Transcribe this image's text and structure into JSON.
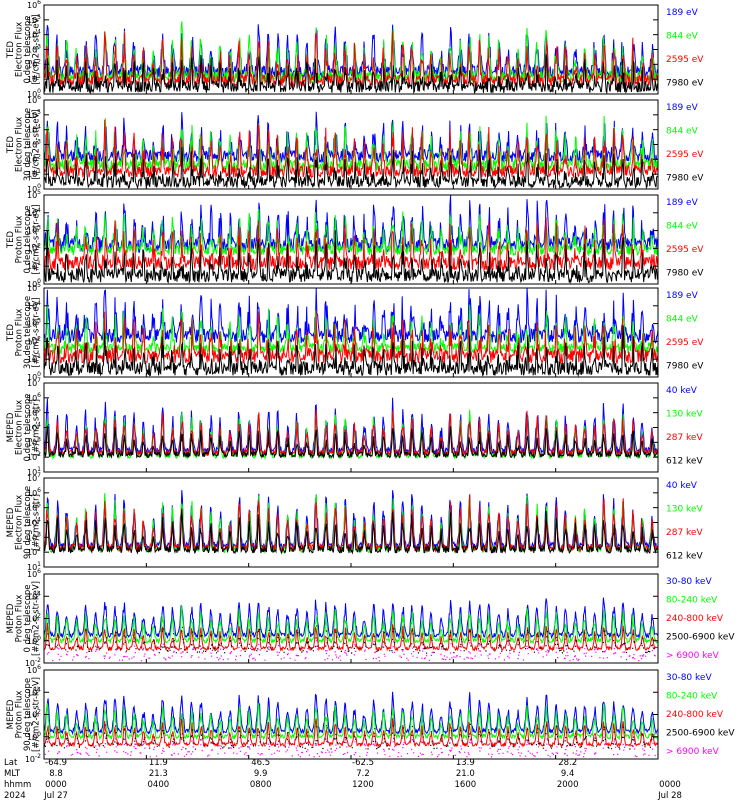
{
  "colors": {
    "black": "#000000",
    "red": "#ff0000",
    "green": "#00ff00",
    "blue": "#0000ff",
    "magenta": "#ff00ff",
    "background": "#ffffff"
  },
  "chart_data": [
    {
      "type": "line",
      "ylabel": [
        "TED",
        "Electron Flux",
        "0 deg telescope",
        "[#/cm2-s-str-eV]"
      ],
      "y_scale": "log",
      "ylim": [
        1,
        1000000
      ],
      "y_ticks": [
        {
          "base": "10",
          "exp": "0"
        },
        {
          "base": "10",
          "exp": "1"
        },
        {
          "base": "10",
          "exp": "2"
        },
        {
          "base": "10",
          "exp": "3"
        },
        {
          "base": "10",
          "exp": "4"
        },
        {
          "base": "10",
          "exp": "5"
        },
        {
          "base": "10",
          "exp": "6"
        }
      ],
      "series": [
        {
          "name": "7980 eV",
          "color": "#000000",
          "floor": 3,
          "peak": 60,
          "noise": 1.0,
          "dots": false
        },
        {
          "name": "2595 eV",
          "color": "#ff0000",
          "floor": 8,
          "peak": 2000,
          "noise": 1.0,
          "dots": false
        },
        {
          "name": "844 eV",
          "color": "#00ff00",
          "floor": 15,
          "peak": 4000,
          "noise": 1.0,
          "dots": false
        },
        {
          "name": "189 eV",
          "color": "#0000ff",
          "floor": 30,
          "peak": 8000,
          "noise": 1.0,
          "dots": false
        }
      ]
    },
    {
      "type": "line",
      "ylabel": [
        "TED",
        "Electron Flux",
        "30 deg telescope",
        "[#/cm2-s-str-eV]"
      ],
      "y_scale": "log",
      "ylim": [
        1,
        1000000
      ],
      "y_ticks": [
        {
          "base": "10",
          "exp": "0"
        },
        {
          "base": "10",
          "exp": "1"
        },
        {
          "base": "10",
          "exp": "2"
        },
        {
          "base": "10",
          "exp": "3"
        },
        {
          "base": "10",
          "exp": "4"
        },
        {
          "base": "10",
          "exp": "5"
        },
        {
          "base": "10",
          "exp": "6"
        }
      ],
      "series": [
        {
          "name": "7980 eV",
          "color": "#000000",
          "floor": 3,
          "peak": 80,
          "noise": 1.0,
          "dots": false
        },
        {
          "name": "2595 eV",
          "color": "#ff0000",
          "floor": 15,
          "peak": 3000,
          "noise": 1.0,
          "dots": false
        },
        {
          "name": "844 eV",
          "color": "#00ff00",
          "floor": 40,
          "peak": 5000,
          "noise": 1.0,
          "dots": false
        },
        {
          "name": "189 eV",
          "color": "#0000ff",
          "floor": 150,
          "peak": 8000,
          "noise": 1.0,
          "dots": false
        }
      ]
    },
    {
      "type": "line",
      "ylabel": [
        "TED",
        "Proton Flux",
        "0 deg telescope",
        "[#/cm2-s-str-eV]"
      ],
      "y_scale": "log",
      "ylim": [
        1,
        100000
      ],
      "y_ticks": [
        {
          "base": "10",
          "exp": "0"
        },
        {
          "base": "10",
          "exp": "1"
        },
        {
          "base": "10",
          "exp": "2"
        },
        {
          "base": "10",
          "exp": "3"
        },
        {
          "base": "10",
          "exp": "4"
        },
        {
          "base": "10",
          "exp": "5"
        }
      ],
      "series": [
        {
          "name": "7980 eV",
          "color": "#000000",
          "floor": 3,
          "peak": 60,
          "noise": 1.0,
          "dots": false
        },
        {
          "name": "2595 eV",
          "color": "#ff0000",
          "floor": 15,
          "peak": 400,
          "noise": 1.0,
          "dots": false
        },
        {
          "name": "844 eV",
          "color": "#00ff00",
          "floor": 80,
          "peak": 3000,
          "noise": 0.7,
          "dots": false
        },
        {
          "name": "189 eV",
          "color": "#0000ff",
          "floor": 150,
          "peak": 10000,
          "noise": 1.0,
          "dots": false
        }
      ]
    },
    {
      "type": "line",
      "ylabel": [
        "TED",
        "Proton Flux",
        "30 deg telescope",
        "[#/cm2-s-str-eV]"
      ],
      "y_scale": "log",
      "ylim": [
        1,
        100000
      ],
      "y_ticks": [
        {
          "base": "10",
          "exp": "0"
        },
        {
          "base": "10",
          "exp": "1"
        },
        {
          "base": "10",
          "exp": "2"
        },
        {
          "base": "10",
          "exp": "3"
        },
        {
          "base": "10",
          "exp": "4"
        },
        {
          "base": "10",
          "exp": "5"
        }
      ],
      "series": [
        {
          "name": "7980 eV",
          "color": "#000000",
          "floor": 3,
          "peak": 50,
          "noise": 1.0,
          "dots": false
        },
        {
          "name": "2595 eV",
          "color": "#ff0000",
          "floor": 15,
          "peak": 300,
          "noise": 1.0,
          "dots": false
        },
        {
          "name": "844 eV",
          "color": "#00ff00",
          "floor": 40,
          "peak": 2000,
          "noise": 0.7,
          "dots": false
        },
        {
          "name": "189 eV",
          "color": "#0000ff",
          "floor": 200,
          "peak": 8000,
          "noise": 1.0,
          "dots": false
        }
      ]
    },
    {
      "type": "line",
      "ylabel": [
        "MEPED",
        "Electron Flux",
        "0 deg telescope",
        "[#/cm2-s-str]"
      ],
      "y_scale": "log",
      "ylim": [
        10,
        10000000
      ],
      "y_ticks": [
        {
          "base": "10",
          "exp": "1"
        },
        {
          "base": "10",
          "exp": "2"
        },
        {
          "base": "10",
          "exp": "3"
        },
        {
          "base": "10",
          "exp": "4"
        },
        {
          "base": "10",
          "exp": "5"
        },
        {
          "base": "10",
          "exp": "6"
        },
        {
          "base": "10",
          "exp": "7"
        }
      ],
      "series": [
        {
          "name": "612 keV",
          "color": "#000000",
          "floor": 150,
          "peak": 5000,
          "noise": 0.5,
          "dots": false
        },
        {
          "name": "287 keV",
          "color": "#ff0000",
          "floor": 200,
          "peak": 50000,
          "noise": 0.5,
          "dots": false
        },
        {
          "name": "130 keV",
          "color": "#00ff00",
          "floor": 120,
          "peak": 60000,
          "noise": 0.4,
          "dots": false
        },
        {
          "name": "40 keV",
          "color": "#0000ff",
          "floor": 250,
          "peak": 200000,
          "noise": 0.6,
          "dots": false
        }
      ]
    },
    {
      "type": "line",
      "ylabel": [
        "MEPED",
        "Electron Flux",
        "90 deg telescope",
        "[#/cm2-s-str]"
      ],
      "y_scale": "log",
      "ylim": [
        10,
        10000000
      ],
      "y_ticks": [
        {
          "base": "10",
          "exp": "1"
        },
        {
          "base": "10",
          "exp": "2"
        },
        {
          "base": "10",
          "exp": "3"
        },
        {
          "base": "10",
          "exp": "4"
        },
        {
          "base": "10",
          "exp": "5"
        },
        {
          "base": "10",
          "exp": "6"
        },
        {
          "base": "10",
          "exp": "7"
        }
      ],
      "series": [
        {
          "name": "612 keV",
          "color": "#000000",
          "floor": 150,
          "peak": 20000,
          "noise": 0.6,
          "dots": false
        },
        {
          "name": "287 keV",
          "color": "#ff0000",
          "floor": 200,
          "peak": 150000,
          "noise": 0.6,
          "dots": false
        },
        {
          "name": "130 keV",
          "color": "#00ff00",
          "floor": 150,
          "peak": 300000,
          "noise": 0.5,
          "dots": false
        },
        {
          "name": "40 keV",
          "color": "#0000ff",
          "floor": 250,
          "peak": 500000,
          "noise": 0.6,
          "dots": false
        }
      ]
    },
    {
      "type": "line",
      "ylabel": [
        "MEPED",
        "Proton Flux",
        "0 deg telescope",
        "[#/cm2-s-str-keV]"
      ],
      "y_scale": "log",
      "ylim": [
        0.01,
        1000000
      ],
      "y_ticks": [
        {
          "base": "10",
          "exp": "-2"
        },
        {
          "base": "10",
          "exp": "0"
        },
        {
          "base": "10",
          "exp": "2"
        },
        {
          "base": "10",
          "exp": "4"
        },
        {
          "base": "10",
          "exp": "6"
        }
      ],
      "series": [
        {
          "name": "> 6900 keV",
          "color": "#ff00ff",
          "floor": 0.03,
          "peak": 0.3,
          "noise": 0.6,
          "dots": true
        },
        {
          "name": "2500-6900 keV",
          "color": "#000000",
          "floor": 0.15,
          "peak": 5,
          "noise": 0.6,
          "dots": true
        },
        {
          "name": "240-800 keV",
          "color": "#ff0000",
          "floor": 0.2,
          "peak": 15,
          "noise": 0.4,
          "dots": false
        },
        {
          "name": "80-240 keV",
          "color": "#00ff00",
          "floor": 1,
          "peak": 300,
          "noise": 0.5,
          "dots": false
        },
        {
          "name": "30-80 keV",
          "color": "#0000ff",
          "floor": 3,
          "peak": 3000,
          "noise": 0.5,
          "dots": false
        }
      ]
    },
    {
      "type": "line",
      "ylabel": [
        "MEPED",
        "Proton Flux",
        "90 deg telescope",
        "[#/cm2-s-str-keV]"
      ],
      "y_scale": "log",
      "ylim": [
        0.01,
        1000000
      ],
      "y_ticks": [
        {
          "base": "10",
          "exp": "-2"
        },
        {
          "base": "10",
          "exp": "0"
        },
        {
          "base": "10",
          "exp": "2"
        },
        {
          "base": "10",
          "exp": "4"
        },
        {
          "base": "10",
          "exp": "6"
        }
      ],
      "series": [
        {
          "name": "> 6900 keV",
          "color": "#ff00ff",
          "floor": 0.03,
          "peak": 0.3,
          "noise": 0.6,
          "dots": true
        },
        {
          "name": "2500-6900 keV",
          "color": "#000000",
          "floor": 0.15,
          "peak": 5,
          "noise": 0.6,
          "dots": true
        },
        {
          "name": "240-800 keV",
          "color": "#ff0000",
          "floor": 0.2,
          "peak": 15,
          "noise": 0.4,
          "dots": false
        },
        {
          "name": "80-240 keV",
          "color": "#00ff00",
          "floor": 1,
          "peak": 300,
          "noise": 0.5,
          "dots": false
        },
        {
          "name": "30-80 keV",
          "color": "#0000ff",
          "floor": 3,
          "peak": 3000,
          "noise": 0.5,
          "dots": false
        }
      ]
    }
  ],
  "orbit_passes": 32,
  "x_axis": {
    "row_labels": [
      "Lat",
      "MLT",
      "hhmm",
      "2024"
    ],
    "columns": [
      {
        "lat": "-64.9",
        "mlt": "8.8",
        "hhmm": "0000",
        "date": "Jul 27"
      },
      {
        "lat": "11.9",
        "mlt": "21.3",
        "hhmm": "0400",
        "date": ""
      },
      {
        "lat": "46.5",
        "mlt": "9.9",
        "hhmm": "0800",
        "date": ""
      },
      {
        "lat": "-62.5",
        "mlt": "7.2",
        "hhmm": "1200",
        "date": ""
      },
      {
        "lat": "13.9",
        "mlt": "21.0",
        "hhmm": "1600",
        "date": ""
      },
      {
        "lat": "28.2",
        "mlt": "9.4",
        "hhmm": "2000",
        "date": ""
      },
      {
        "lat": "",
        "mlt": "",
        "hhmm": "0000",
        "date": "Jul 28"
      }
    ]
  }
}
